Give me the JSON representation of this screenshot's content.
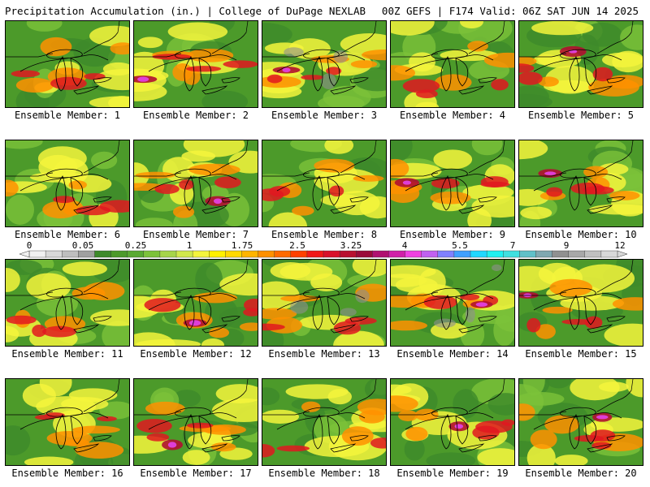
{
  "header": {
    "title_left": "Precipitation Accumulation (in.) | College of DuPage NEXLAB",
    "title_right": "00Z GEFS | F174 Valid: 06Z SAT JUN 14 2025"
  },
  "panels": [
    {
      "label": "Ensemble Member: 1"
    },
    {
      "label": "Ensemble Member: 2"
    },
    {
      "label": "Ensemble Member: 3"
    },
    {
      "label": "Ensemble Member: 4"
    },
    {
      "label": "Ensemble Member: 5"
    },
    {
      "label": "Ensemble Member: 6"
    },
    {
      "label": "Ensemble Member: 7"
    },
    {
      "label": "Ensemble Member: 8"
    },
    {
      "label": "Ensemble Member: 9"
    },
    {
      "label": "Ensemble Member: 10"
    },
    {
      "label": "Ensemble Member: 11"
    },
    {
      "label": "Ensemble Member: 12"
    },
    {
      "label": "Ensemble Member: 13"
    },
    {
      "label": "Ensemble Member: 14"
    },
    {
      "label": "Ensemble Member: 15"
    },
    {
      "label": "Ensemble Member: 16"
    },
    {
      "label": "Ensemble Member: 17"
    },
    {
      "label": "Ensemble Member: 18"
    },
    {
      "label": "Ensemble Member: 19"
    },
    {
      "label": "Ensemble Member: 20"
    }
  ],
  "color_scale": {
    "labels": [
      "0",
      "0.05",
      "0.25",
      "1",
      "1.75",
      "2.5",
      "3.25",
      "4",
      "5.5",
      "7",
      "9",
      "12"
    ],
    "colors": [
      "#f0f0f0",
      "#d8d8d8",
      "#bebebe",
      "#a0a0a0",
      "#3d8a2a",
      "#4c9a2a",
      "#5aaa32",
      "#7cc23a",
      "#a6d44a",
      "#d0e84c",
      "#f4f43c",
      "#fff000",
      "#ffd800",
      "#ffb400",
      "#ff9000",
      "#ff6a00",
      "#ff4000",
      "#f01818",
      "#d8102a",
      "#b81030",
      "#9a0a3a",
      "#b01070",
      "#d020a8",
      "#f040e0",
      "#c060f0",
      "#8080ff",
      "#40a0ff",
      "#20d8ff",
      "#20f0f0",
      "#40e0e0",
      "#60c0c8",
      "#80a8b0",
      "#909090",
      "#a8a8a8",
      "#c0c0c0",
      "#d8d8d8"
    ]
  },
  "map_colors": {
    "base": "#4c9a2a",
    "dark_green": "#3d8a2a",
    "light_green": "#7cc23a",
    "yellow": "#f4f43c",
    "orange": "#ff9000",
    "red": "#e01820",
    "dark_red": "#b01030",
    "magenta": "#e040e0",
    "gray": "#909090"
  }
}
